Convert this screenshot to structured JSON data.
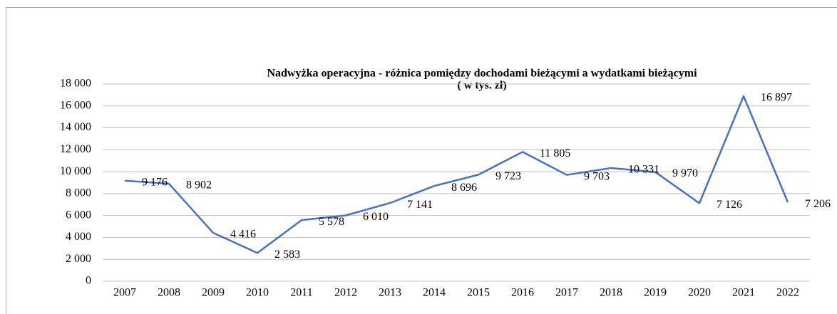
{
  "chart_data": {
    "type": "line",
    "title": "Nadwyżka operacyjna - różnica pomiędzy dochodami bieżącymi a wydatkami bieżącymi",
    "subtitle": "( w tys. zł)",
    "categories": [
      "2007",
      "2008",
      "2009",
      "2010",
      "2011",
      "2012",
      "2013",
      "2014",
      "2015",
      "2016",
      "2017",
      "2018",
      "2019",
      "2020",
      "2021",
      "2022"
    ],
    "series": [
      {
        "name": "Nadwyżka operacyjna",
        "color": "#4472c4",
        "values": [
          9176,
          8902,
          4416,
          2583,
          5578,
          6010,
          7141,
          8696,
          9723,
          11805,
          9703,
          10331,
          9970,
          7126,
          16897,
          7206
        ],
        "value_labels": [
          "9 176",
          "8 902",
          "4 416",
          "2 583",
          "5 578",
          "6 010",
          "7 141",
          "8 696",
          "9 723",
          "11 805",
          "9 703",
          "10 331",
          "9 970",
          "7 126",
          "16 897",
          "7 206"
        ]
      }
    ],
    "ylim": [
      0,
      18000
    ],
    "yticks": [
      0,
      {
        "value": 2000,
        "label": "2 000"
      },
      {
        "value": 4000,
        "label": "4 000"
      },
      {
        "value": 6000,
        "label": "6 000"
      },
      {
        "value": 8000,
        "label": "8 000"
      },
      {
        "value": 10000,
        "label": "10 000"
      },
      {
        "value": 12000,
        "label": "12 000"
      },
      {
        "value": 14000,
        "label": "14 000"
      },
      {
        "value": 16000,
        "label": "16 000"
      },
      {
        "value": 18000,
        "label": "18 000"
      }
    ],
    "grid": true
  }
}
